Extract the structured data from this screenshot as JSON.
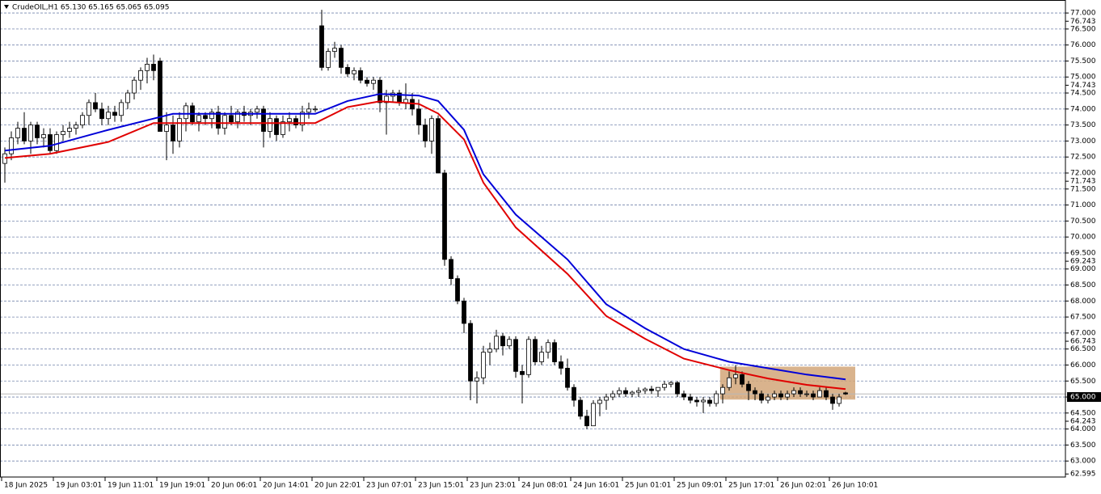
{
  "chart_data": {
    "type": "candlestick",
    "title": "CrudeOIL,H1  65.130 65.165 65.065 65.095",
    "categories": [
      "18 Jun 2025",
      null,
      null,
      null,
      null,
      null,
      null,
      null,
      "19 Jun 03:01",
      null,
      null,
      null,
      null,
      null,
      null,
      null,
      "19 Jun 11:01",
      null,
      null,
      null,
      null,
      null,
      null,
      null,
      "19 Jun 19:01",
      null,
      null,
      null,
      null,
      null,
      null,
      null,
      "20 Jun 06:01",
      null,
      null,
      null,
      null,
      null,
      null,
      null,
      "20 Jun 14:01",
      null,
      null,
      null,
      null,
      null,
      null,
      null,
      "20 Jun 22:01",
      null,
      null,
      null,
      null,
      null,
      null,
      null,
      "23 Jun 07:01",
      null,
      null,
      null,
      null,
      null,
      null,
      null,
      "23 Jun 15:01",
      null,
      null,
      null,
      null,
      null,
      null,
      null,
      "23 Jun 23:01",
      null,
      null,
      null,
      null,
      null,
      null,
      null,
      "24 Jun 08:01",
      null,
      null,
      null,
      null,
      null,
      null,
      null,
      "24 Jun 16:01",
      null,
      null,
      null,
      null,
      null,
      null,
      null,
      "25 Jun 01:01",
      null,
      null,
      null,
      null,
      null,
      null,
      null,
      "25 Jun 09:01",
      null,
      null,
      null,
      null,
      null,
      null,
      null,
      "25 Jun 17:01",
      null,
      null,
      null,
      null,
      null,
      null,
      null,
      "26 Jun 02:01",
      null,
      null,
      null,
      null,
      null,
      null,
      null,
      "26 Jun 10:01",
      null,
      null
    ],
    "open": [
      72.3,
      72.6,
      73.1,
      73.4,
      73.0,
      73.5,
      73.1,
      73.2,
      72.7,
      73.2,
      73.3,
      73.4,
      73.5,
      73.8,
      74.2,
      74.0,
      73.7,
      73.9,
      73.8,
      74.2,
      74.5,
      74.9,
      75.2,
      75.4,
      75.5,
      73.3,
      73.5,
      73.0,
      73.7,
      74.1,
      73.6,
      73.8,
      73.7,
      73.9,
      73.4,
      73.8,
      73.6,
      73.9,
      73.8,
      73.9,
      74.0,
      73.3,
      73.7,
      73.2,
      73.6,
      73.7,
      73.5,
      73.9,
      74.0,
      76.6,
      75.3,
      75.8,
      75.9,
      75.3,
      75.1,
      75.2,
      74.9,
      74.8,
      74.9,
      74.2,
      74.4,
      74.5,
      74.2,
      74.3,
      74.0,
      73.5,
      73.0,
      73.7,
      72.0,
      69.3,
      68.7,
      68.0,
      67.3,
      65.5,
      65.6,
      66.4,
      66.5,
      66.9,
      66.6,
      66.8,
      65.8,
      65.7,
      66.8,
      66.1,
      66.4,
      66.7,
      66.1,
      65.9,
      65.3,
      64.9,
      64.4,
      64.1,
      64.8,
      64.9,
      65.0,
      65.1,
      65.2,
      65.1,
      65.15,
      65.2,
      65.25,
      65.2,
      65.3,
      65.4,
      65.45,
      65.1,
      65.0,
      64.9,
      64.85,
      64.9,
      64.8,
      65.1,
      65.3,
      65.6,
      65.7,
      65.4,
      65.2,
      65.1,
      64.9,
      65.0,
      65.1,
      65.0,
      65.1,
      65.2,
      65.1,
      65.1,
      65.0,
      65.2,
      65.0,
      64.8,
      65.13
    ],
    "high": [
      72.8,
      73.3,
      73.6,
      73.9,
      73.6,
      73.6,
      73.4,
      73.4,
      73.3,
      73.5,
      73.6,
      73.6,
      73.9,
      74.3,
      74.5,
      74.2,
      74.1,
      74.1,
      74.3,
      74.6,
      75.0,
      75.3,
      75.6,
      75.7,
      75.6,
      73.9,
      73.8,
      73.9,
      74.2,
      74.2,
      73.9,
      73.9,
      74.0,
      74.1,
      73.9,
      74.1,
      74.0,
      74.1,
      74.0,
      74.1,
      74.1,
      73.9,
      73.8,
      73.8,
      73.9,
      73.8,
      74.1,
      74.2,
      74.1,
      77.1,
      75.9,
      76.1,
      76.0,
      75.4,
      75.3,
      75.3,
      75.0,
      75.0,
      75.0,
      74.6,
      74.6,
      74.6,
      74.8,
      74.5,
      74.3,
      73.7,
      73.8,
      73.8,
      72.1,
      69.4,
      68.8,
      68.1,
      67.4,
      65.8,
      66.6,
      66.7,
      67.1,
      67.0,
      66.9,
      66.9,
      66.0,
      66.9,
      66.9,
      66.6,
      66.8,
      66.8,
      66.3,
      66.2,
      65.4,
      65.0,
      64.6,
      64.9,
      65.0,
      65.1,
      65.2,
      65.3,
      65.3,
      65.2,
      65.3,
      65.3,
      65.35,
      65.3,
      65.5,
      65.5,
      65.5,
      65.2,
      65.1,
      65.0,
      65.0,
      65.0,
      65.2,
      65.4,
      65.8,
      66.0,
      65.8,
      65.5,
      65.3,
      65.2,
      65.1,
      65.2,
      65.2,
      65.2,
      65.3,
      65.3,
      65.2,
      65.2,
      65.3,
      65.3,
      65.1,
      65.1,
      65.165
    ],
    "low": [
      71.7,
      72.4,
      72.9,
      72.9,
      72.6,
      72.9,
      72.8,
      72.6,
      72.6,
      73.0,
      73.1,
      73.2,
      73.4,
      73.5,
      73.9,
      73.5,
      73.5,
      73.6,
      73.6,
      74.0,
      74.3,
      74.6,
      74.8,
      74.9,
      73.3,
      72.4,
      72.6,
      72.8,
      73.3,
      73.5,
      73.3,
      73.5,
      73.4,
      73.2,
      73.2,
      73.5,
      73.4,
      73.6,
      73.5,
      73.7,
      72.8,
      73.1,
      73.0,
      73.1,
      73.3,
      73.4,
      73.3,
      73.7,
      73.9,
      75.2,
      75.2,
      75.6,
      75.1,
      75.0,
      74.9,
      74.8,
      74.7,
      74.6,
      73.9,
      73.2,
      74.2,
      74.1,
      74.0,
      73.8,
      73.2,
      72.8,
      72.6,
      72.0,
      69.1,
      68.5,
      67.9,
      67.0,
      64.9,
      64.8,
      65.4,
      66.0,
      66.4,
      66.3,
      66.5,
      65.6,
      64.8,
      65.6,
      66.0,
      66.0,
      66.2,
      66.0,
      65.7,
      65.2,
      64.7,
      64.3,
      64.0,
      64.1,
      64.4,
      64.6,
      64.9,
      65.0,
      65.0,
      65.0,
      65.0,
      65.1,
      65.1,
      65.0,
      65.2,
      65.3,
      65.0,
      64.9,
      64.8,
      64.7,
      64.5,
      64.7,
      64.7,
      64.8,
      65.2,
      65.4,
      65.3,
      64.9,
      64.9,
      64.8,
      64.8,
      64.9,
      64.9,
      64.9,
      65.0,
      65.0,
      65.0,
      64.9,
      65.0,
      64.9,
      64.6,
      64.7,
      65.065
    ],
    "close": [
      72.6,
      73.1,
      73.4,
      73.0,
      73.5,
      73.1,
      73.2,
      72.7,
      73.2,
      73.3,
      73.4,
      73.5,
      73.8,
      74.2,
      74.0,
      73.7,
      73.9,
      73.8,
      74.2,
      74.5,
      74.9,
      75.2,
      75.4,
      75.2,
      73.3,
      73.5,
      73.0,
      73.7,
      74.1,
      73.6,
      73.8,
      73.7,
      73.9,
      73.4,
      73.8,
      73.6,
      73.9,
      73.8,
      73.9,
      74.0,
      73.3,
      73.7,
      73.2,
      73.6,
      73.7,
      73.5,
      73.9,
      74.0,
      74.0,
      75.3,
      75.8,
      75.9,
      75.3,
      75.1,
      75.2,
      74.9,
      74.8,
      74.9,
      74.2,
      74.4,
      74.5,
      74.2,
      74.3,
      74.0,
      73.5,
      73.0,
      73.7,
      72.0,
      69.3,
      68.7,
      68.0,
      67.3,
      65.5,
      65.6,
      66.4,
      66.5,
      66.9,
      66.6,
      66.8,
      65.8,
      65.7,
      66.8,
      66.1,
      66.4,
      66.7,
      66.1,
      65.9,
      65.3,
      64.9,
      64.4,
      64.1,
      64.8,
      64.9,
      65.0,
      65.1,
      65.2,
      65.1,
      65.15,
      65.2,
      65.25,
      65.2,
      65.3,
      65.4,
      65.45,
      65.1,
      65.0,
      64.9,
      64.85,
      64.9,
      64.8,
      65.1,
      65.3,
      65.6,
      65.7,
      65.4,
      65.2,
      65.1,
      64.9,
      65.0,
      65.1,
      65.0,
      65.1,
      65.2,
      65.1,
      65.1,
      65.0,
      65.2,
      65.0,
      64.8,
      65.0,
      65.095
    ],
    "bull_color": "#ffffff",
    "bear_color": "#000000",
    "ma_lines": [
      {
        "color": "#0000d8",
        "x": [
          0,
          7,
          16,
          23,
          26,
          48,
          53,
          58,
          64,
          67,
          71,
          74,
          79,
          87,
          93,
          99,
          105,
          112,
          118,
          124,
          130
        ],
        "values": [
          72.7,
          72.85,
          73.35,
          73.7,
          73.85,
          73.85,
          74.25,
          74.47,
          74.42,
          74.25,
          73.35,
          71.96,
          70.7,
          69.3,
          67.9,
          67.15,
          66.5,
          66.1,
          65.9,
          65.7,
          65.55
        ]
      },
      {
        "color": "#e00000",
        "x": [
          0,
          7,
          16,
          23,
          26,
          48,
          53,
          58,
          64,
          67,
          71,
          74,
          79,
          87,
          93,
          99,
          105,
          112,
          118,
          124,
          130
        ],
        "values": [
          72.47,
          72.6,
          72.97,
          73.56,
          73.56,
          73.56,
          74.06,
          74.24,
          74.16,
          73.86,
          73.05,
          71.7,
          70.3,
          68.85,
          67.53,
          66.82,
          66.2,
          65.84,
          65.58,
          65.38,
          65.25
        ]
      }
    ],
    "zone": {
      "start": 110.6,
      "end": 131.5,
      "top": 65.95,
      "bottom": 64.92,
      "color": "#d2a679"
    },
    "current_price": 65.095,
    "xlim": [
      -0.75,
      164
    ],
    "ylim": [
      62.5,
      77.28
    ],
    "yticks": [
      {
        "value": 63,
        "label": "63.000"
      },
      {
        "value": 63.5,
        "label": "63.500"
      },
      {
        "value": 64,
        "label": "64.000"
      },
      {
        "value": 64.5,
        "label": "64.500"
      },
      {
        "value": 65,
        "label": "65.000"
      },
      {
        "value": 65.5,
        "label": "65.500"
      },
      {
        "value": 66,
        "label": "66.000"
      },
      {
        "value": 66.5,
        "label": "66.500"
      },
      {
        "value": 67,
        "label": "67.000"
      },
      {
        "value": 67.5,
        "label": "67.500"
      },
      {
        "value": 68,
        "label": "68.000"
      },
      {
        "value": 68.5,
        "label": "68.500"
      },
      {
        "value": 69,
        "label": "69.000"
      },
      {
        "value": 69.5,
        "label": "69.500"
      },
      {
        "value": 70,
        "label": "70.000"
      },
      {
        "value": 70.5,
        "label": "70.500"
      },
      {
        "value": 71,
        "label": "71.000"
      },
      {
        "value": 71.5,
        "label": "71.500"
      },
      {
        "value": 72,
        "label": "72.000"
      },
      {
        "value": 72.5,
        "label": "72.500"
      },
      {
        "value": 73,
        "label": "73.000"
      },
      {
        "value": 73.5,
        "label": "73.500"
      },
      {
        "value": 74,
        "label": "74.000"
      },
      {
        "value": 74.5,
        "label": "74.500"
      },
      {
        "value": 75,
        "label": "75.000"
      },
      {
        "value": 75.5,
        "label": "75.500"
      },
      {
        "value": 76,
        "label": "76.000"
      },
      {
        "value": 76.5,
        "label": "76.500"
      },
      {
        "value": 77,
        "label": "77.000"
      }
    ],
    "level_labels": [
      76.743,
      74.743,
      71.743,
      69.243,
      66.743,
      64.243,
      62.595
    ],
    "highlight_tick": 4,
    "grid": true
  }
}
